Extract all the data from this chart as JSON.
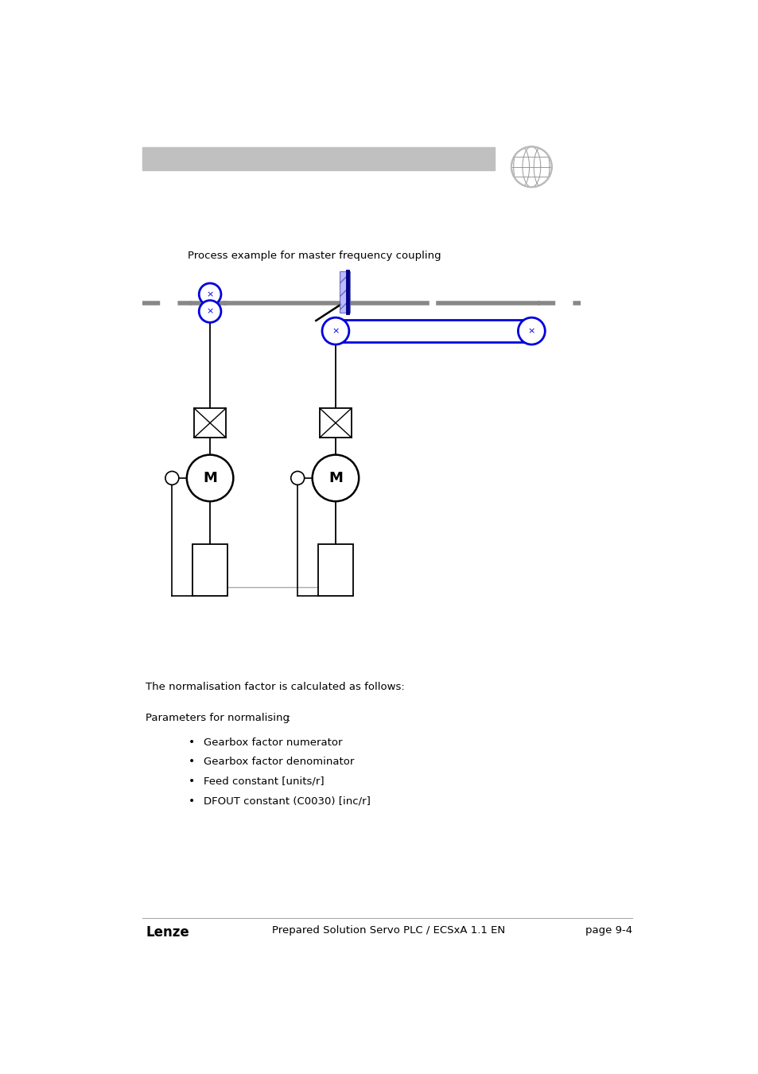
{
  "title": "Process example for master frequency coupling",
  "header_bar_color": "#b8b8b8",
  "bg_color": "#ffffff",
  "blue_color": "#0000dd",
  "black_color": "#000000",
  "gray_color": "#888888",
  "light_gray": "#aaaaaa",
  "footer_lenze": "Lenze",
  "footer_center": "Prepared Solution Servo PLC / ECSxA 1.1 EN",
  "footer_page": "page 9-4",
  "text_normalisation": "The normalisation factor is calculated as follows:",
  "text_params": "Parameters for normalising",
  "text_params_colon": ":",
  "bullet_items": [
    "Gearbox factor numerator",
    "Gearbox factor denominator",
    "Feed constant [units/r]",
    "DFOUT constant (C0030) [inc/r]"
  ]
}
